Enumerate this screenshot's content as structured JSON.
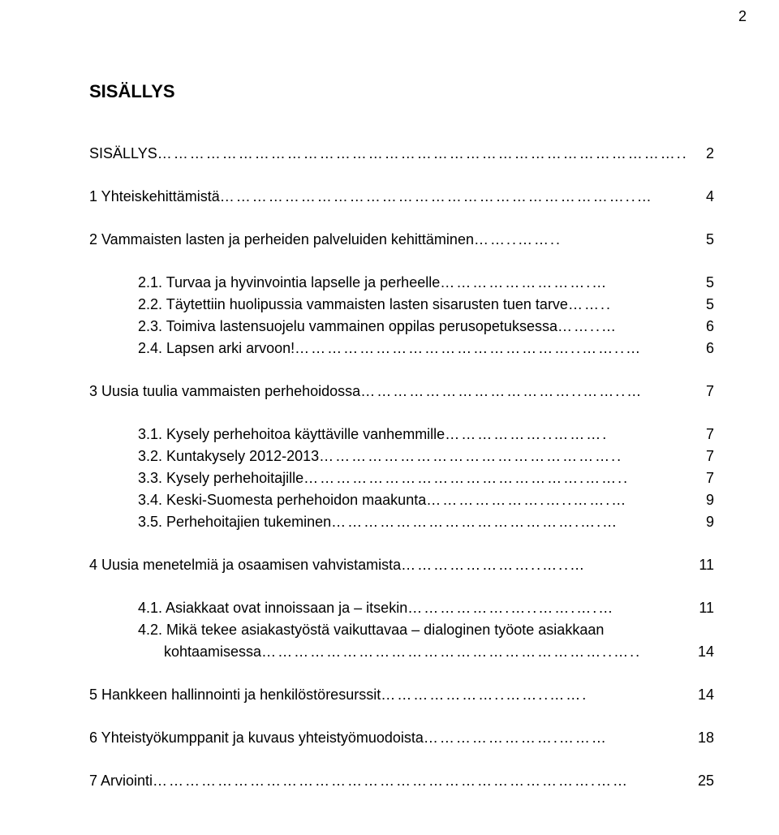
{
  "page_number_top": "2",
  "title": "SISÄLLYS",
  "entries": [
    {
      "label": "SISÄLLYS",
      "page": "2",
      "indent": "lvl0",
      "gap": "none",
      "dots": "…………………………………………………………………………………….."
    },
    {
      "label": "1  Yhteiskehittämistä",
      "page": "4",
      "indent": "lvl1",
      "gap": "big",
      "dots": "…………………………………………………………………..…"
    },
    {
      "label": "2  Vammaisten lasten ja perheiden palveluiden kehittäminen",
      "page": "5",
      "indent": "lvl1",
      "gap": "big",
      "dots": "……..…….."
    },
    {
      "label": "2.1. Turvaa ja hyvinvointia lapselle ja perheelle",
      "page": "5",
      "indent": "lvl2",
      "gap": "big",
      "dots": "……………………….…"
    },
    {
      "label": "2.2. Täytettiin huolipussia vammaisten lasten sisarusten tuen tarve",
      "page": "5",
      "indent": "lvl2",
      "gap": "small",
      "dots": "…….."
    },
    {
      "label": "2.3. Toimiva lastensuojelu vammainen oppilas perusopetuksessa",
      "page": "6",
      "indent": "lvl2",
      "gap": "small",
      "dots": "……..…"
    },
    {
      "label": "2.4. Lapsen arki arvoon!",
      "page": "6",
      "indent": "lvl2",
      "gap": "small",
      "dots": "……………………………………………..……..…"
    },
    {
      "label": "3  Uusia tuulia vammaisten perhehoidossa",
      "page": "7",
      "indent": "lvl1",
      "gap": "big",
      "dots": "…………………………………..……..…"
    },
    {
      "label": "3.1. Kysely perhehoitoa käyttäville vanhemmille",
      "page": "7",
      "indent": "lvl2",
      "gap": "big",
      "dots": "………………..………."
    },
    {
      "label": "3.2. Kuntakysely 2012-2013",
      "page": "7",
      "indent": "lvl2",
      "gap": "small",
      "dots": "……………………………………………….."
    },
    {
      "label": "3.3. Kysely perhehoitajille",
      "page": "7",
      "indent": "lvl2",
      "gap": "small",
      "dots": "…………………………………………….…….."
    },
    {
      "label": "3.4. Keski-Suomesta perhehoidon maakunta",
      "page": "9",
      "indent": "lvl2",
      "gap": "small",
      "dots": "………………….…..…….…"
    },
    {
      "label": "3.5. Perhehoitajien tukeminen",
      "page": "9",
      "indent": "lvl2",
      "gap": "small",
      "dots": "……………………………………….….…"
    },
    {
      "label": "4  Uusia menetelmiä ja osaamisen vahvistamista",
      "page": "11",
      "indent": "lvl1",
      "gap": "big",
      "dots": "……………………..…..…"
    },
    {
      "label": "4.1. Asiakkaat ovat innoissaan ja – itsekin",
      "page": "11",
      "indent": "lvl2",
      "gap": "big",
      "dots": "……………….…..…….….…"
    },
    {
      "label": "4.2. Mikä tekee asiakastyöstä vaikuttavaa – dialoginen työote asiakkaan",
      "page": "",
      "indent": "lvl2",
      "gap": "small",
      "dots": ""
    },
    {
      "label": "kohtaamisessa",
      "page": "14",
      "indent": "lvl2b",
      "gap": "small",
      "dots": "………………………………………………………..….."
    },
    {
      "label": "5  Hankkeen hallinnointi ja henkilöstöresurssit",
      "page": "14",
      "indent": "lvl1",
      "gap": "big",
      "dots": "…………………..……..……."
    },
    {
      "label": "6  Yhteistyökumppanit ja kuvaus yhteistyömuodoista",
      "page": "18",
      "indent": "lvl1",
      "gap": "big",
      "dots": "…………………….………"
    },
    {
      "label": "7  Arviointi",
      "page": " 25",
      "indent": "lvl1",
      "gap": "big",
      "dots": "……………………………………………………………………….……"
    }
  ]
}
